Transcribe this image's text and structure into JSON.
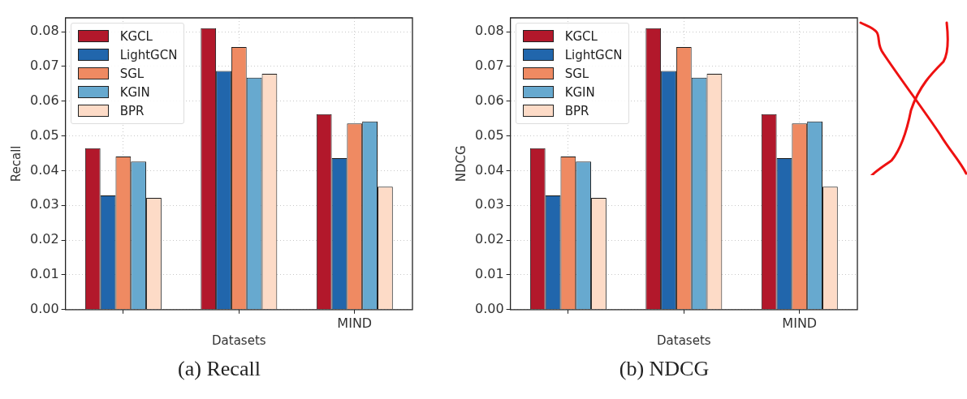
{
  "chart_data": [
    {
      "type": "bar",
      "title": "(a) Recall",
      "xlabel": "Datasets",
      "ylabel": "Recall",
      "categories": [
        null,
        null,
        "MIND"
      ],
      "series": [
        {
          "name": "KGCL",
          "color": "#b2182b",
          "values": [
            0.0465,
            0.081,
            0.0563
          ]
        },
        {
          "name": "LightGCN",
          "color": "#2166ac",
          "values": [
            0.0329,
            0.0687,
            0.0436
          ]
        },
        {
          "name": "SGL",
          "color": "#ef8a62",
          "values": [
            0.0441,
            0.0756,
            0.0536
          ]
        },
        {
          "name": "KGIN",
          "color": "#67a9cf",
          "values": [
            0.0426,
            0.0668,
            0.0542
          ]
        },
        {
          "name": "BPR",
          "color": "#fddbc7",
          "values": [
            0.0322,
            0.0679,
            0.0354
          ]
        }
      ],
      "ylim": [
        0,
        0.084
      ],
      "yticks": [
        {
          "value": 0,
          "label": "0.00"
        },
        {
          "value": 0.01,
          "label": "0.01"
        },
        {
          "value": 0.02,
          "label": "0.02"
        },
        {
          "value": 0.03,
          "label": "0.03"
        },
        {
          "value": 0.04,
          "label": "0.04"
        },
        {
          "value": 0.05,
          "label": "0.05"
        },
        {
          "value": 0.06,
          "label": "0.06"
        },
        {
          "value": 0.07,
          "label": "0.07"
        },
        {
          "value": 0.08,
          "label": "0.08"
        }
      ],
      "grid": true,
      "legend": "top left"
    },
    {
      "type": "bar",
      "title": "(b) NDCG",
      "xlabel": "Datasets",
      "ylabel": "NDCG",
      "categories": [
        null,
        null,
        "MIND"
      ],
      "series": [
        {
          "name": "KGCL",
          "color": "#b2182b",
          "values": [
            0.0465,
            0.081,
            0.0563
          ]
        },
        {
          "name": "LightGCN",
          "color": "#2166ac",
          "values": [
            0.0329,
            0.0687,
            0.0436
          ]
        },
        {
          "name": "SGL",
          "color": "#ef8a62",
          "values": [
            0.0441,
            0.0756,
            0.0536
          ]
        },
        {
          "name": "KGIN",
          "color": "#67a9cf",
          "values": [
            0.0426,
            0.0668,
            0.0542
          ]
        },
        {
          "name": "BPR",
          "color": "#fddbc7",
          "values": [
            0.0322,
            0.0679,
            0.0354
          ]
        }
      ],
      "ylim": [
        0,
        0.084
      ],
      "yticks": [
        {
          "value": 0,
          "label": "0.00"
        },
        {
          "value": 0.01,
          "label": "0.01"
        },
        {
          "value": 0.02,
          "label": "0.02"
        },
        {
          "value": 0.03,
          "label": "0.03"
        },
        {
          "value": 0.04,
          "label": "0.04"
        },
        {
          "value": 0.05,
          "label": "0.05"
        },
        {
          "value": 0.06,
          "label": "0.06"
        },
        {
          "value": 0.07,
          "label": "0.07"
        },
        {
          "value": 0.08,
          "label": "0.08"
        }
      ],
      "grid": true,
      "legend": "top left"
    }
  ]
}
